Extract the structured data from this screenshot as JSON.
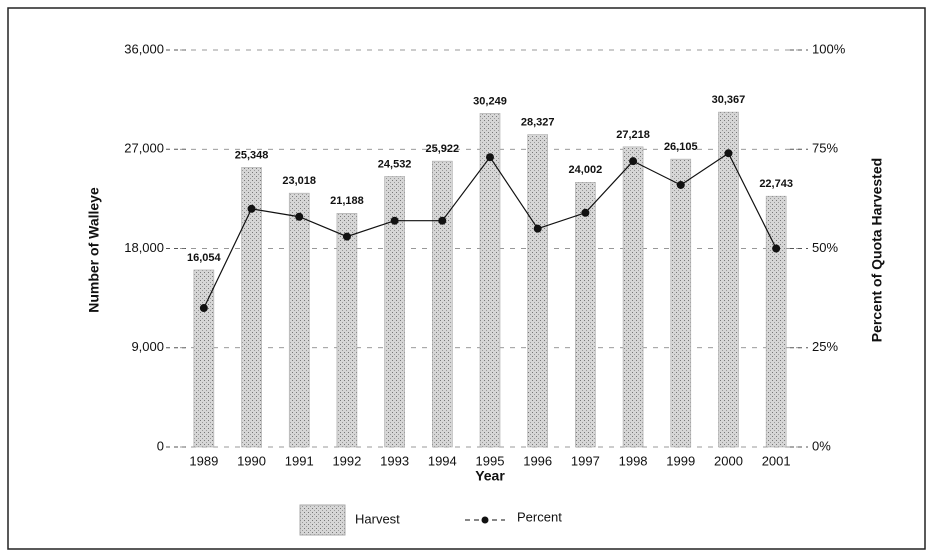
{
  "chart_data": {
    "type": "bar",
    "x_label": "Year",
    "y_label": "Number of Walleye",
    "y2_label": "Percent of Quota Harvested",
    "categories": [
      "1989",
      "1990",
      "1991",
      "1992",
      "1993",
      "1994",
      "1995",
      "1996",
      "1997",
      "1998",
      "1999",
      "2000",
      "2001"
    ],
    "series": [
      {
        "name": "Harvest",
        "type": "bar",
        "color": "#c4c4c4",
        "values": [
          16054,
          25348,
          23018,
          21188,
          24532,
          25922,
          30249,
          28327,
          24002,
          27218,
          26105,
          30367,
          22743
        ],
        "value_labels": [
          "16,054",
          "25,348",
          "23,018",
          "21,188",
          "24,532",
          "25,922",
          "30,249",
          "28,327",
          "24,002",
          "27,218",
          "26,105",
          "30,367",
          "22,743"
        ]
      },
      {
        "name": "Percent",
        "type": "line",
        "axis": "y2",
        "color": "#111111",
        "values": [
          35,
          60,
          58,
          53,
          57,
          57,
          73,
          55,
          59,
          72,
          66,
          74,
          50
        ]
      }
    ],
    "ylim": [
      0,
      36000
    ],
    "yticks": [
      0,
      {
        "value": 9000,
        "label": "9,000"
      },
      {
        "value": 18000,
        "label": "18,000"
      },
      {
        "value": 27000,
        "label": "27,000"
      },
      {
        "value": 36000,
        "label": "36,000"
      }
    ],
    "y2lim": [
      0,
      100
    ],
    "y2ticks": [
      {
        "value": 0,
        "label": "0%"
      },
      {
        "value": 25,
        "label": "25%"
      },
      {
        "value": 50,
        "label": "50%"
      },
      {
        "value": 75,
        "label": "75%"
      },
      {
        "value": 100,
        "label": "100%"
      }
    ],
    "grid": true,
    "legend": "bottom"
  }
}
